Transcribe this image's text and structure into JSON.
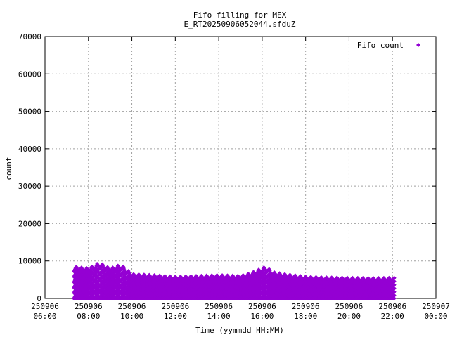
{
  "chart_data": {
    "type": "scatter",
    "title_line1": "Fifo filling for MEX",
    "title_line2": "E_RT20250906052044.sfduZ",
    "xlabel": "Time (yymmdd HH:MM)",
    "ylabel": "count",
    "ylim": [
      0,
      70000
    ],
    "yticks": [
      0,
      10000,
      20000,
      30000,
      40000,
      50000,
      60000,
      70000
    ],
    "xlim": [
      "2025-09-06 06:00",
      "2025-09-07 00:00"
    ],
    "xticks": [
      {
        "date": "250906",
        "time": "06:00"
      },
      {
        "date": "250906",
        "time": "08:00"
      },
      {
        "date": "250906",
        "time": "10:00"
      },
      {
        "date": "250906",
        "time": "12:00"
      },
      {
        "date": "250906",
        "time": "14:00"
      },
      {
        "date": "250906",
        "time": "16:00"
      },
      {
        "date": "250906",
        "time": "18:00"
      },
      {
        "date": "250906",
        "time": "20:00"
      },
      {
        "date": "250906",
        "time": "22:00"
      },
      {
        "date": "250907",
        "time": "00:00"
      }
    ],
    "grid": true,
    "legend_position": "top-right",
    "series": [
      {
        "name": "Fifo count",
        "color": "#9400d3",
        "marker": "diamond",
        "time_start": "2025-09-06 07:20",
        "time_end": "2025-09-06 22:05",
        "min_value": 0,
        "envelope": [
          [
            "07:20",
            8500
          ],
          [
            "08:00",
            8000
          ],
          [
            "08:30",
            9500
          ],
          [
            "09:00",
            8000
          ],
          [
            "09:30",
            9000
          ],
          [
            "10:00",
            6500
          ],
          [
            "11:00",
            6200
          ],
          [
            "12:00",
            5800
          ],
          [
            "13:00",
            6000
          ],
          [
            "14:00",
            6200
          ],
          [
            "15:00",
            6000
          ],
          [
            "15:30",
            6800
          ],
          [
            "16:10",
            8500
          ],
          [
            "16:30",
            7000
          ],
          [
            "17:00",
            6500
          ],
          [
            "18:00",
            5800
          ],
          [
            "19:00",
            5600
          ],
          [
            "20:00",
            5500
          ],
          [
            "21:00",
            5400
          ],
          [
            "22:00",
            5500
          ]
        ]
      }
    ]
  }
}
